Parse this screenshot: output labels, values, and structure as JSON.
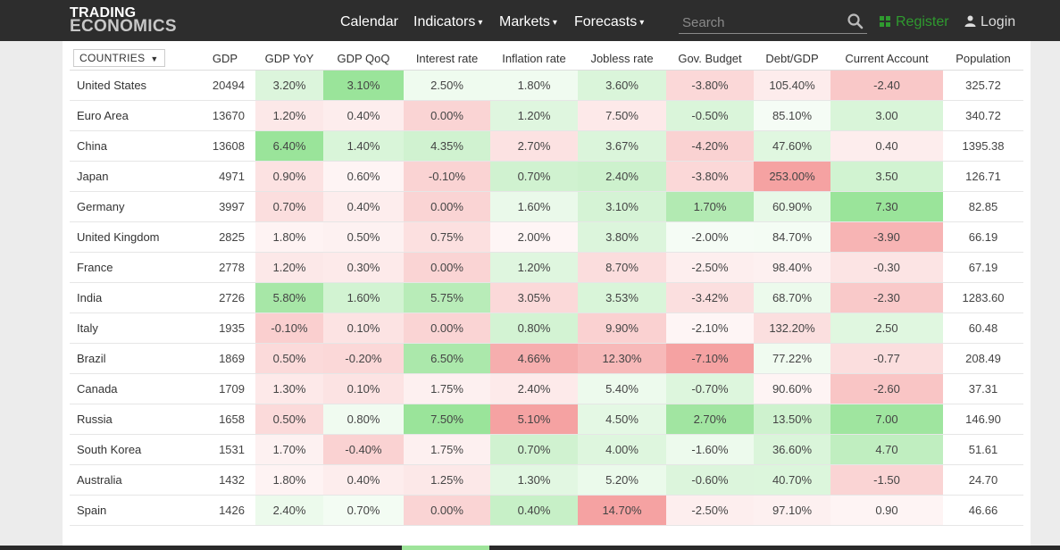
{
  "header": {
    "logo_line1": "TRADING",
    "logo_line2": "ECONOMICS",
    "nav": [
      {
        "label": "Calendar",
        "has_dropdown": false
      },
      {
        "label": "Indicators",
        "has_dropdown": true
      },
      {
        "label": "Markets",
        "has_dropdown": true
      },
      {
        "label": "Forecasts",
        "has_dropdown": true
      }
    ],
    "search_placeholder": "Search",
    "register_label": "Register",
    "login_label": "Login",
    "colors": {
      "bar": "#2d2d2d",
      "register": "#2f9a2f"
    }
  },
  "table": {
    "countries_button": "COUNTRIES",
    "columns": [
      "GDP",
      "GDP YoY",
      "GDP QoQ",
      "Interest rate",
      "Inflation rate",
      "Jobless rate",
      "Gov. Budget",
      "Debt/GDP",
      "Current Account",
      "Population"
    ],
    "rows": [
      {
        "country": "United States",
        "values": [
          "20494",
          "3.20%",
          "3.10%",
          "2.50%",
          "1.80%",
          "3.60%",
          "-3.80%",
          "105.40%",
          "-2.40",
          "325.72"
        ]
      },
      {
        "country": "Euro Area",
        "values": [
          "13670",
          "1.20%",
          "0.40%",
          "0.00%",
          "1.20%",
          "7.50%",
          "-0.50%",
          "85.10%",
          "3.00",
          "340.72"
        ]
      },
      {
        "country": "China",
        "values": [
          "13608",
          "6.40%",
          "1.40%",
          "4.35%",
          "2.70%",
          "3.67%",
          "-4.20%",
          "47.60%",
          "0.40",
          "1395.38"
        ]
      },
      {
        "country": "Japan",
        "values": [
          "4971",
          "0.90%",
          "0.60%",
          "-0.10%",
          "0.70%",
          "2.40%",
          "-3.80%",
          "253.00%",
          "3.50",
          "126.71"
        ]
      },
      {
        "country": "Germany",
        "values": [
          "3997",
          "0.70%",
          "0.40%",
          "0.00%",
          "1.60%",
          "3.10%",
          "1.70%",
          "60.90%",
          "7.30",
          "82.85"
        ]
      },
      {
        "country": "United Kingdom",
        "values": [
          "2825",
          "1.80%",
          "0.50%",
          "0.75%",
          "2.00%",
          "3.80%",
          "-2.00%",
          "84.70%",
          "-3.90",
          "66.19"
        ]
      },
      {
        "country": "France",
        "values": [
          "2778",
          "1.20%",
          "0.30%",
          "0.00%",
          "1.20%",
          "8.70%",
          "-2.50%",
          "98.40%",
          "-0.30",
          "67.19"
        ]
      },
      {
        "country": "India",
        "values": [
          "2726",
          "5.80%",
          "1.60%",
          "5.75%",
          "3.05%",
          "3.53%",
          "-3.42%",
          "68.70%",
          "-2.30",
          "1283.60"
        ]
      },
      {
        "country": "Italy",
        "values": [
          "1935",
          "-0.10%",
          "0.10%",
          "0.00%",
          "0.80%",
          "9.90%",
          "-2.10%",
          "132.20%",
          "2.50",
          "60.48"
        ]
      },
      {
        "country": "Brazil",
        "values": [
          "1869",
          "0.50%",
          "-0.20%",
          "6.50%",
          "4.66%",
          "12.30%",
          "-7.10%",
          "77.22%",
          "-0.77",
          "208.49"
        ]
      },
      {
        "country": "Canada",
        "values": [
          "1709",
          "1.30%",
          "0.10%",
          "1.75%",
          "2.40%",
          "5.40%",
          "-0.70%",
          "90.60%",
          "-2.60",
          "37.31"
        ]
      },
      {
        "country": "Russia",
        "values": [
          "1658",
          "0.50%",
          "0.80%",
          "7.50%",
          "5.10%",
          "4.50%",
          "2.70%",
          "13.50%",
          "7.00",
          "146.90"
        ]
      },
      {
        "country": "South Korea",
        "values": [
          "1531",
          "1.70%",
          "-0.40%",
          "1.75%",
          "0.70%",
          "4.00%",
          "-1.60%",
          "36.60%",
          "4.70",
          "51.61"
        ]
      },
      {
        "country": "Australia",
        "values": [
          "1432",
          "1.80%",
          "0.40%",
          "1.25%",
          "1.30%",
          "5.20%",
          "-0.60%",
          "40.70%",
          "-1.50",
          "24.70"
        ]
      },
      {
        "country": "Spain",
        "values": [
          "1426",
          "2.40%",
          "0.70%",
          "0.00%",
          "0.40%",
          "14.70%",
          "-2.50%",
          "97.10%",
          "0.90",
          "46.66"
        ]
      }
    ],
    "colors": {
      "positive": "#5ad25a",
      "negative": "#ee6666"
    }
  }
}
